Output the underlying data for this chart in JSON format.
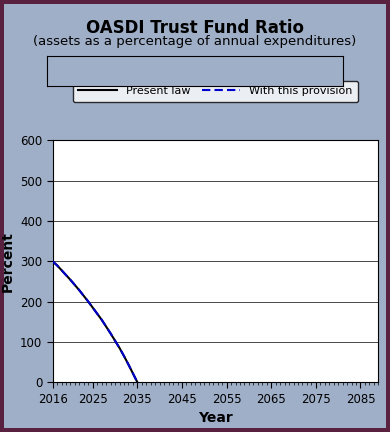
{
  "title_line1": "OASDI Trust Fund Ratio",
  "title_line2": "(assets as a percentage of annual expenditures)",
  "xlabel": "Year",
  "ylabel": "Percent",
  "xlim": [
    2016,
    2089
  ],
  "ylim": [
    0,
    600
  ],
  "yticks": [
    0,
    100,
    200,
    300,
    400,
    500,
    600
  ],
  "xticks": [
    2016,
    2025,
    2035,
    2045,
    2055,
    2065,
    2075,
    2085
  ],
  "xtick_labels": [
    "2016",
    "2025",
    "2035",
    "2045",
    "2055",
    "2065",
    "2075",
    "2085"
  ],
  "present_law_x": [
    2016,
    2017,
    2018,
    2019,
    2020,
    2021,
    2022,
    2023,
    2024,
    2025,
    2026,
    2027,
    2028,
    2029,
    2030,
    2031,
    2032,
    2033,
    2034,
    2035
  ],
  "present_law_y": [
    300,
    290,
    278,
    266,
    254,
    241,
    228,
    214,
    200,
    185,
    170,
    155,
    138,
    121,
    103,
    85,
    65,
    44,
    22,
    0
  ],
  "provision_x": [
    2016,
    2017,
    2018,
    2019,
    2020,
    2021,
    2022,
    2023,
    2024,
    2025,
    2026,
    2027,
    2028,
    2029,
    2030,
    2031,
    2032,
    2033,
    2034,
    2035
  ],
  "provision_y": [
    300,
    290,
    278,
    266,
    254,
    241,
    228,
    214,
    200,
    185,
    170,
    155,
    138,
    121,
    103,
    85,
    65,
    44,
    22,
    0
  ],
  "present_law_color": "#000000",
  "provision_color": "#0000cc",
  "background_outer": "#a0afc8",
  "background_border": "#5a2040",
  "background_inner": "#ffffff",
  "legend_label_1": "Present law",
  "legend_label_2": "With this provision",
  "title_fontsize": 12,
  "subtitle_fontsize": 9.5,
  "axis_label_fontsize": 10,
  "tick_fontsize": 8.5
}
